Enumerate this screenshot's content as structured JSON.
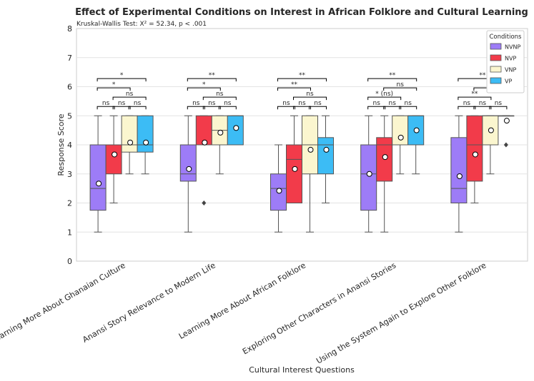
{
  "chart_data": {
    "type": "box",
    "title": "Effect of Experimental Conditions on Interest in African Folklore and Cultural Learning",
    "subtitle": "Kruskal-Wallis Test: X² = 52.34, p < .001",
    "xlabel": "Cultural Interest Questions",
    "ylabel": "Response Score",
    "ylim": [
      0,
      8
    ],
    "yticks": [
      0,
      1,
      2,
      3,
      4,
      5,
      6,
      7,
      8
    ],
    "grid": true,
    "legend": {
      "title": "Conditions",
      "position": "top-right",
      "entries": [
        "NVNP",
        "NVP",
        "VNP",
        "VP"
      ]
    },
    "colors": {
      "NVNP": "#9d7cf7",
      "NVP": "#f23b4a",
      "VNP": "#fbf6cf",
      "VP": "#3cbcf5",
      "line": "#555555"
    },
    "categories": [
      "Learning More About Ghanaian Culture",
      "Anansi Story Relevance to Modern Life",
      "Learning More About African Folklore",
      "Exploring Other Characters in Anansi Stories",
      "Using the System Again to Explore Other Folklore"
    ],
    "series": [
      {
        "name": "NVNP",
        "boxes": [
          {
            "min": 1,
            "q1": 1.75,
            "median": 2.5,
            "q3": 4,
            "max": 5,
            "mean": 2.67,
            "outliers": []
          },
          {
            "min": 1,
            "q1": 2.75,
            "median": 3,
            "q3": 4,
            "max": 5,
            "mean": 3.17,
            "outliers": []
          },
          {
            "min": 1,
            "q1": 1.75,
            "median": 2.5,
            "q3": 3,
            "max": 4,
            "mean": 2.42,
            "outliers": []
          },
          {
            "min": 1,
            "q1": 1.75,
            "median": 3,
            "q3": 4,
            "max": 5,
            "mean": 3.0,
            "outliers": []
          },
          {
            "min": 1,
            "q1": 2,
            "median": 2.5,
            "q3": 4.25,
            "max": 5,
            "mean": 2.92,
            "outliers": []
          }
        ]
      },
      {
        "name": "NVP",
        "boxes": [
          {
            "min": 2,
            "q1": 3,
            "median": 4,
            "q3": 4,
            "max": 5,
            "mean": 3.67,
            "outliers": []
          },
          {
            "min": 4,
            "q1": 4,
            "median": 4,
            "q3": 5,
            "max": 5,
            "mean": 4.08,
            "outliers": [
              2
            ]
          },
          {
            "min": 2,
            "q1": 2,
            "median": 3.5,
            "q3": 4,
            "max": 5,
            "mean": 3.17,
            "outliers": []
          },
          {
            "min": 1,
            "q1": 2.75,
            "median": 4,
            "q3": 4.25,
            "max": 5,
            "mean": 3.58,
            "outliers": []
          },
          {
            "min": 2,
            "q1": 2.75,
            "median": 4,
            "q3": 5,
            "max": 5,
            "mean": 3.67,
            "outliers": []
          }
        ]
      },
      {
        "name": "VNP",
        "boxes": [
          {
            "min": 3,
            "q1": 3.75,
            "median": 4,
            "q3": 5,
            "max": 5,
            "mean": 4.08,
            "outliers": []
          },
          {
            "min": 3,
            "q1": 4,
            "median": 4.5,
            "q3": 5,
            "max": 5,
            "mean": 4.42,
            "outliers": []
          },
          {
            "min": 1,
            "q1": 3,
            "median": 4,
            "q3": 5,
            "max": 5,
            "mean": 3.83,
            "outliers": []
          },
          {
            "min": 3,
            "q1": 4,
            "median": 4,
            "q3": 5,
            "max": 5,
            "mean": 4.25,
            "outliers": []
          },
          {
            "min": 3,
            "q1": 4,
            "median": 5,
            "q3": 5,
            "max": 5,
            "mean": 4.5,
            "outliers": []
          }
        ]
      },
      {
        "name": "VP",
        "boxes": [
          {
            "min": 3,
            "q1": 3.75,
            "median": 4,
            "q3": 5,
            "max": 5,
            "mean": 4.08,
            "outliers": []
          },
          {
            "min": 4,
            "q1": 4,
            "median": 5,
            "q3": 5,
            "max": 5,
            "mean": 4.58,
            "outliers": []
          },
          {
            "min": 2,
            "q1": 3,
            "median": 4,
            "q3": 4.25,
            "max": 5,
            "mean": 3.83,
            "outliers": []
          },
          {
            "min": 3,
            "q1": 4,
            "median": 5,
            "q3": 5,
            "max": 5,
            "mean": 4.5,
            "outliers": []
          },
          {
            "min": 5,
            "q1": 5,
            "median": 5,
            "q3": 5,
            "max": 5,
            "mean": 4.83,
            "outliers": [
              4
            ]
          }
        ]
      }
    ],
    "significance": [
      [
        {
          "from": 0,
          "to": 1,
          "level": 0,
          "label": "ns"
        },
        {
          "from": 1,
          "to": 2,
          "level": 0,
          "label": "ns"
        },
        {
          "from": 2,
          "to": 3,
          "level": 0,
          "label": "ns"
        },
        {
          "from": 1,
          "to": 3,
          "level": 1,
          "label": "ns"
        },
        {
          "from": 0,
          "to": 2,
          "level": 2,
          "label": "*"
        },
        {
          "from": 0,
          "to": 3,
          "level": 3,
          "label": "*"
        }
      ],
      [
        {
          "from": 0,
          "to": 1,
          "level": 0,
          "label": "ns"
        },
        {
          "from": 1,
          "to": 2,
          "level": 0,
          "label": "ns"
        },
        {
          "from": 2,
          "to": 3,
          "level": 0,
          "label": "ns"
        },
        {
          "from": 1,
          "to": 3,
          "level": 1,
          "label": "ns"
        },
        {
          "from": 0,
          "to": 2,
          "level": 2,
          "label": "*"
        },
        {
          "from": 0,
          "to": 3,
          "level": 3,
          "label": "**"
        }
      ],
      [
        {
          "from": 0,
          "to": 1,
          "level": 0,
          "label": "ns"
        },
        {
          "from": 1,
          "to": 2,
          "level": 0,
          "label": "ns"
        },
        {
          "from": 2,
          "to": 3,
          "level": 0,
          "label": "ns"
        },
        {
          "from": 1,
          "to": 3,
          "level": 1,
          "label": "ns"
        },
        {
          "from": 0,
          "to": 2,
          "level": 2,
          "label": "**"
        },
        {
          "from": 0,
          "to": 3,
          "level": 3,
          "label": "**"
        }
      ],
      [
        {
          "from": 0,
          "to": 1,
          "level": 0,
          "label": "ns"
        },
        {
          "from": 1,
          "to": 2,
          "level": 0,
          "label": "ns"
        },
        {
          "from": 2,
          "to": 3,
          "level": 0,
          "label": "ns"
        },
        {
          "from": 0,
          "to": 2,
          "level": 1,
          "label": "* (ns)"
        },
        {
          "from": 1,
          "to": 3,
          "level": 2,
          "label": "ns"
        },
        {
          "from": 0,
          "to": 3,
          "level": 3,
          "label": "**"
        }
      ],
      [
        {
          "from": 0,
          "to": 1,
          "level": 0,
          "label": "ns"
        },
        {
          "from": 1,
          "to": 2,
          "level": 0,
          "label": "ns"
        },
        {
          "from": 2,
          "to": 3,
          "level": 0,
          "label": "ns"
        },
        {
          "from": 0,
          "to": 2,
          "level": 1,
          "label": "**"
        },
        {
          "from": 1,
          "to": 3,
          "level": 2,
          "label": "**"
        },
        {
          "from": 0,
          "to": 3,
          "level": 3,
          "label": "**"
        }
      ]
    ]
  }
}
